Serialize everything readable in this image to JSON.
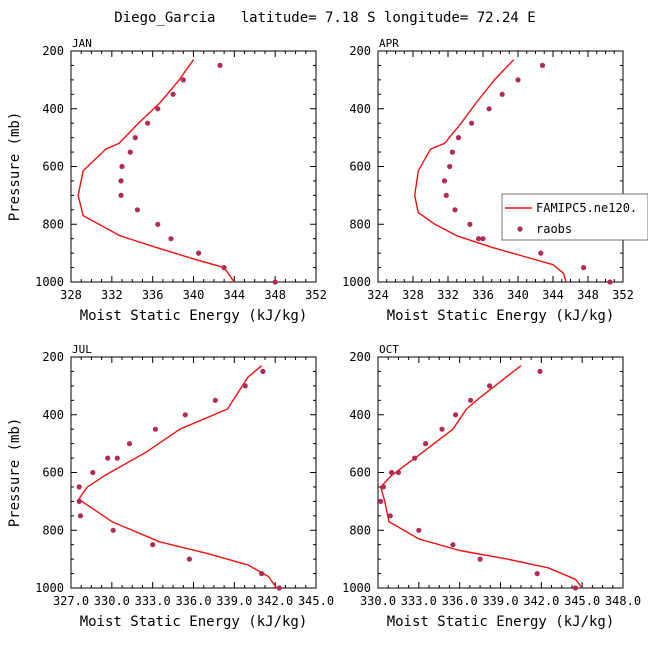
{
  "figure_title": "Diego_Garcia   latitude= 7.18 S longitude= 72.24 E",
  "colors": {
    "model_line": "#ee1111",
    "obs_marker": "#b02b55",
    "frame": "#000000"
  },
  "legend": {
    "model_label": "FAMIPC5.ne120.",
    "obs_label": "raobs"
  },
  "chart_data": [
    {
      "type": "line",
      "panel": "JAN",
      "title": "JAN",
      "xlabel": "Moist Static Energy (kJ/kg)",
      "ylabel": "Pressure (mb)",
      "xlim": [
        328,
        352
      ],
      "ylim": [
        200,
        1000
      ],
      "y_inverted": true,
      "xticks": [
        "328",
        "332",
        "336",
        "340",
        "344",
        "348",
        "352"
      ],
      "yticks": [
        "200",
        "400",
        "600",
        "800",
        "1000"
      ],
      "series": [
        {
          "name": "FAMIPC5.ne120.",
          "type": "line",
          "x": [
            340.0,
            338.6,
            336.7,
            334.6,
            332.7,
            331.4,
            329.2,
            328.7,
            329.2,
            332.8,
            336.3,
            340.0,
            343.0,
            343.5,
            344.0
          ],
          "y": [
            230,
            300,
            380,
            450,
            520,
            540,
            615,
            700,
            770,
            840,
            880,
            920,
            950,
            975,
            1000
          ]
        },
        {
          "name": "raobs",
          "type": "scatter",
          "x": [
            342.6,
            339.0,
            338.0,
            336.5,
            335.5,
            334.3,
            333.8,
            333.0,
            332.9,
            332.9,
            334.5,
            336.5,
            337.8,
            340.5,
            343.0,
            348.0
          ],
          "y": [
            250,
            300,
            350,
            400,
            450,
            500,
            550,
            600,
            650,
            700,
            750,
            800,
            850,
            900,
            950,
            1000
          ]
        }
      ]
    },
    {
      "type": "line",
      "panel": "APR",
      "title": "APR",
      "xlabel": "Moist Static Energy (kJ/kg)",
      "ylabel": "",
      "xlim": [
        324,
        352
      ],
      "ylim": [
        200,
        1000
      ],
      "y_inverted": true,
      "xticks": [
        "324",
        "328",
        "332",
        "336",
        "340",
        "344",
        "348",
        "352"
      ],
      "yticks": [
        "200",
        "400",
        "600",
        "800",
        "1000"
      ],
      "legend_position": "right",
      "series": [
        {
          "name": "FAMIPC5.ne120.",
          "type": "line",
          "x": [
            339.5,
            337.3,
            335.2,
            333.5,
            331.6,
            330.0,
            328.6,
            328.2,
            328.6,
            330.5,
            333.0,
            337.0,
            340.5,
            344.0,
            345.2,
            345.5
          ],
          "y": [
            230,
            300,
            380,
            450,
            520,
            540,
            615,
            700,
            760,
            800,
            840,
            880,
            910,
            940,
            970,
            1000
          ]
        },
        {
          "name": "raobs",
          "type": "scatter",
          "x": [
            342.8,
            340.0,
            338.2,
            336.7,
            334.7,
            333.2,
            332.5,
            332.2,
            331.6,
            331.8,
            332.8,
            334.5,
            336.0,
            335.5,
            342.6,
            347.5,
            350.5
          ],
          "y": [
            250,
            300,
            350,
            400,
            450,
            500,
            550,
            600,
            650,
            700,
            750,
            800,
            850,
            850,
            900,
            950,
            1000
          ]
        }
      ]
    },
    {
      "type": "line",
      "panel": "JUL",
      "title": "JUL",
      "xlabel": "Moist Static Energy (kJ/kg)",
      "ylabel": "Pressure (mb)",
      "xlim": [
        327,
        345
      ],
      "ylim": [
        200,
        1000
      ],
      "y_inverted": true,
      "xticks": [
        "327.0",
        "330.0",
        "333.0",
        "336.0",
        "339.0",
        "342.0",
        "345.0"
      ],
      "yticks": [
        "200",
        "400",
        "600",
        "800",
        "1000"
      ],
      "series": [
        {
          "name": "FAMIPC5.ne120.",
          "type": "line",
          "x": [
            341.0,
            340.0,
            338.5,
            335.0,
            332.5,
            329.5,
            328.2,
            327.6,
            327.8,
            330.0,
            333.5,
            337.0,
            340.0,
            341.5,
            342.1
          ],
          "y": [
            230,
            270,
            380,
            450,
            530,
            610,
            650,
            690,
            700,
            770,
            840,
            880,
            920,
            960,
            1000
          ]
        },
        {
          "name": "raobs",
          "type": "scatter",
          "x": [
            341.1,
            339.8,
            337.6,
            335.4,
            333.2,
            331.3,
            330.4,
            329.7,
            328.6,
            327.6,
            327.6,
            327.7,
            330.1,
            333.0,
            335.7,
            341.0,
            342.3
          ],
          "y": [
            250,
            300,
            350,
            400,
            450,
            500,
            550,
            550,
            600,
            650,
            700,
            750,
            800,
            850,
            900,
            950,
            1000
          ]
        }
      ]
    },
    {
      "type": "line",
      "panel": "OCT",
      "title": "OCT",
      "xlabel": "Moist Static Energy (kJ/kg)",
      "ylabel": "",
      "xlim": [
        330,
        348
      ],
      "ylim": [
        200,
        1000
      ],
      "y_inverted": true,
      "xticks": [
        "330.0",
        "333.0",
        "336.0",
        "339.0",
        "342.0",
        "345.0",
        "348.0"
      ],
      "yticks": [
        "200",
        "400",
        "600",
        "800",
        "1000"
      ],
      "series": [
        {
          "name": "FAMIPC5.ne120.",
          "type": "line",
          "x": [
            340.5,
            337.5,
            336.5,
            335.5,
            333.0,
            331.0,
            330.2,
            330.5,
            330.8,
            333.0,
            336.0,
            339.5,
            342.5,
            344.5,
            345.0
          ],
          "y": [
            230,
            340,
            380,
            450,
            540,
            610,
            650,
            700,
            770,
            830,
            870,
            900,
            930,
            970,
            1000
          ]
        },
        {
          "name": "raobs",
          "type": "scatter",
          "x": [
            341.9,
            338.2,
            336.8,
            335.7,
            334.7,
            333.5,
            332.7,
            331.5,
            331.0,
            330.4,
            330.2,
            330.9,
            333.0,
            335.5,
            337.5,
            341.7,
            344.5
          ],
          "y": [
            250,
            300,
            350,
            400,
            450,
            500,
            550,
            600,
            600,
            650,
            700,
            750,
            800,
            850,
            900,
            950,
            1000
          ]
        }
      ]
    }
  ]
}
